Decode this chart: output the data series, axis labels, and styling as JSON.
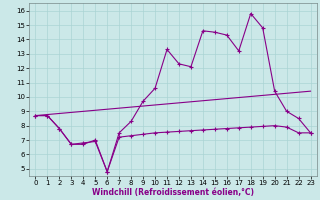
{
  "xlabel": "Windchill (Refroidissement éolien,°C)",
  "background_color": "#cbe8e8",
  "grid_color": "#aad4d4",
  "line_color": "#880088",
  "xlim": [
    -0.5,
    23.5
  ],
  "ylim": [
    4.5,
    16.5
  ],
  "xticks": [
    0,
    1,
    2,
    3,
    4,
    5,
    6,
    7,
    8,
    9,
    10,
    11,
    12,
    13,
    14,
    15,
    16,
    17,
    18,
    19,
    20,
    21,
    22,
    23
  ],
  "yticks": [
    5,
    6,
    7,
    8,
    9,
    10,
    11,
    12,
    13,
    14,
    15,
    16
  ],
  "line1_x": [
    0,
    1,
    2,
    3,
    4,
    5,
    6,
    7,
    8,
    9,
    10,
    11,
    12,
    13,
    14,
    15,
    16,
    17,
    18,
    19,
    20,
    21,
    22,
    23
  ],
  "line1_y": [
    8.7,
    8.7,
    7.8,
    6.7,
    6.7,
    7.0,
    4.8,
    7.5,
    8.3,
    9.7,
    10.6,
    13.3,
    12.3,
    12.1,
    14.6,
    14.5,
    14.3,
    13.2,
    15.8,
    14.8,
    10.4,
    9.0,
    8.5,
    7.5
  ],
  "line2_x": [
    0,
    23
  ],
  "line2_y": [
    8.7,
    10.4
  ],
  "line3_x": [
    0,
    1,
    2,
    3,
    4,
    5,
    6,
    7,
    8,
    9,
    10,
    11,
    12,
    13,
    14,
    15,
    16,
    17,
    18,
    19,
    20,
    21,
    22,
    23
  ],
  "line3_y": [
    8.7,
    8.7,
    7.8,
    6.7,
    6.8,
    6.9,
    4.8,
    7.2,
    7.3,
    7.4,
    7.5,
    7.55,
    7.6,
    7.65,
    7.7,
    7.75,
    7.8,
    7.85,
    7.9,
    7.95,
    8.0,
    7.9,
    7.5,
    7.5
  ],
  "xlabel_color": "#880088",
  "tick_fontsize": 5,
  "xlabel_fontsize": 5.5
}
